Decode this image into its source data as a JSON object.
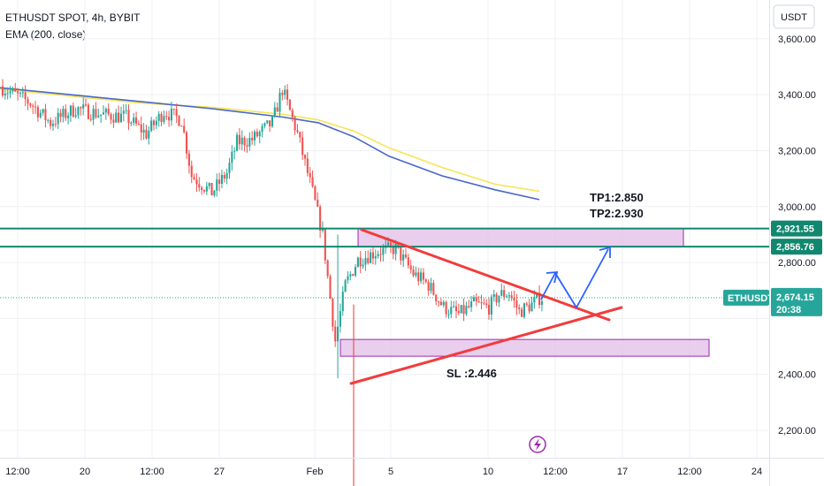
{
  "header": {
    "symbol_line": "ETHUSDT SPOT, 4h, BYBIT",
    "indicator_line": "EMA (200, close)"
  },
  "colors": {
    "up": "#26a69a",
    "down": "#ef5350",
    "ema_blue": "#4966c8",
    "ema_yellow": "#f5e55a",
    "level": "#12876f",
    "zone_fill": "#e1bee7",
    "zone_stroke": "#9c27b0",
    "trend": "#f23c3c",
    "projection": "#2962ff"
  },
  "chart_data": {
    "type": "candlestick",
    "title": "ETHUSDT SPOT, 4h, BYBIT",
    "currency": "USDT",
    "y_axis": {
      "ticks": [
        2200,
        2400,
        2600,
        2800,
        3000,
        3200,
        3400,
        3600
      ],
      "tick_labels": [
        "2,200.00",
        "2,400.00",
        "",
        "2,800.00",
        "3,000.00",
        "3,200.00",
        "3,400.00",
        "3,600.00"
      ],
      "range": [
        2090,
        3720
      ]
    },
    "x_axis": {
      "tick_labels": [
        "12:00",
        "20",
        "12:00",
        "27",
        "Feb",
        "5",
        "10",
        "12:00",
        "17",
        "12:00",
        "24"
      ]
    },
    "candles_summary": {
      "start_price": 3430,
      "high_before_drop": 3446,
      "swing_low": 2446,
      "last_close": 2674.15
    },
    "horizontal_levels": [
      {
        "label": "2,921.55",
        "value": 2921.55
      },
      {
        "label": "2,856.76",
        "value": 2856.76
      }
    ],
    "zones": [
      {
        "name": "resistance",
        "low": 2856.76,
        "high": 2921.55
      },
      {
        "name": "support",
        "low": 2465,
        "high": 2525
      }
    ],
    "annotations": [
      {
        "text": "TP1:2.850"
      },
      {
        "text": "TP2:2.930"
      },
      {
        "text": "SL :2.446"
      }
    ],
    "last_price": {
      "symbol": "ETHUSDT",
      "price": "2,674.15",
      "countdown": "20:38"
    }
  }
}
